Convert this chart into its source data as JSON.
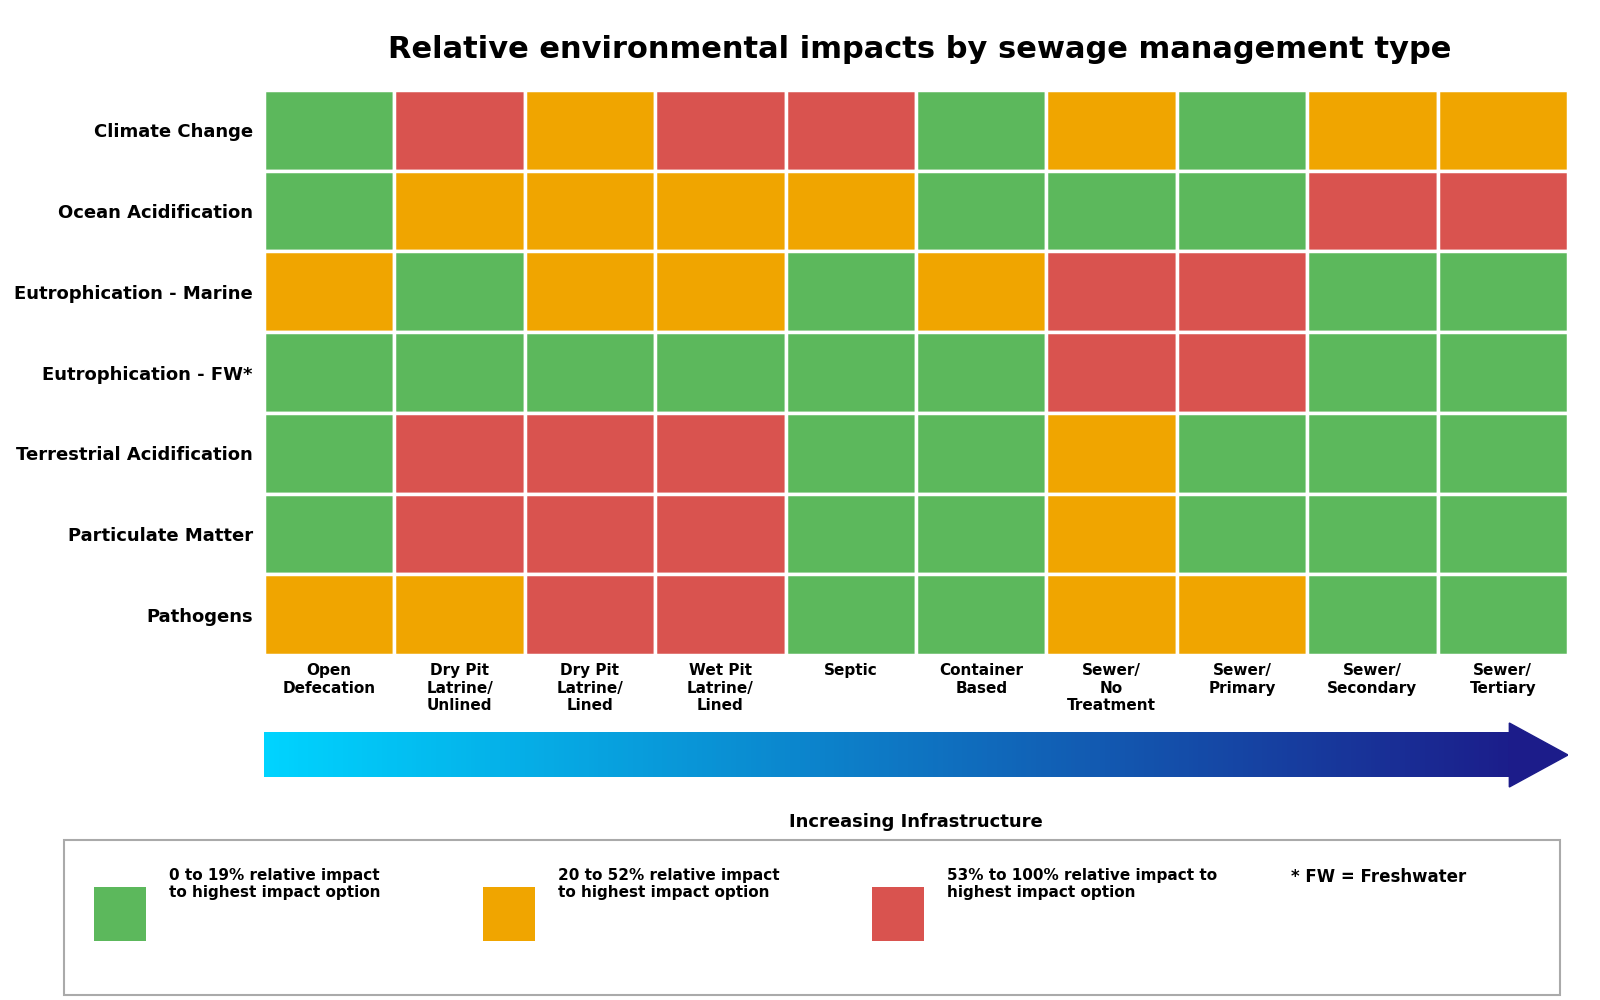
{
  "title": "Relative environmental impacts by sewage management type",
  "rows": [
    "Climate Change",
    "Ocean Acidification",
    "Eutrophication - Marine",
    "Eutrophication - FW*",
    "Terrestrial Acidification",
    "Particulate Matter",
    "Pathogens"
  ],
  "columns": [
    "Open\nDefecation",
    "Dry Pit\nLatrine/\nUnlined",
    "Dry Pit\nLatrine/\nLined",
    "Wet Pit\nLatrine/\nLined",
    "Septic",
    "Container\nBased",
    "Sewer/\nNo\nTreatment",
    "Sewer/\nPrimary",
    "Sewer/\nSecondary",
    "Sewer/\nTertiary"
  ],
  "colors": {
    "green": "#5cb85c",
    "yellow": "#f0a500",
    "red": "#d9534f"
  },
  "cell_data": [
    [
      "green",
      "red",
      "yellow",
      "red",
      "red",
      "green",
      "yellow",
      "green",
      "yellow",
      "yellow"
    ],
    [
      "green",
      "yellow",
      "yellow",
      "yellow",
      "yellow",
      "green",
      "green",
      "green",
      "red",
      "red"
    ],
    [
      "yellow",
      "green",
      "yellow",
      "yellow",
      "green",
      "yellow",
      "red",
      "red",
      "green",
      "green"
    ],
    [
      "green",
      "green",
      "green",
      "green",
      "green",
      "green",
      "red",
      "red",
      "green",
      "green"
    ],
    [
      "green",
      "red",
      "red",
      "red",
      "green",
      "green",
      "yellow",
      "green",
      "green",
      "green"
    ],
    [
      "green",
      "red",
      "red",
      "red",
      "green",
      "green",
      "yellow",
      "green",
      "green",
      "green"
    ],
    [
      "yellow",
      "yellow",
      "red",
      "red",
      "green",
      "green",
      "yellow",
      "yellow",
      "green",
      "green"
    ]
  ],
  "legend_items": [
    {
      "color": "#5cb85c",
      "label": "0 to 19% relative impact\nto highest impact option"
    },
    {
      "color": "#f0a500",
      "label": "20 to 52% relative impact\nto highest impact option"
    },
    {
      "color": "#d9534f",
      "label": "53% to 100% relative impact to\nhighest impact option"
    }
  ],
  "fw_note": "* FW = Freshwater",
  "arrow_label": "Increasing Infrastructure",
  "arrow_color_start": "#00d4ff",
  "arrow_color_end": "#1c1c8a",
  "title_fontsize": 22,
  "row_label_fontsize": 13,
  "col_label_fontsize": 11,
  "legend_fontsize": 11,
  "arrow_label_fontsize": 13
}
